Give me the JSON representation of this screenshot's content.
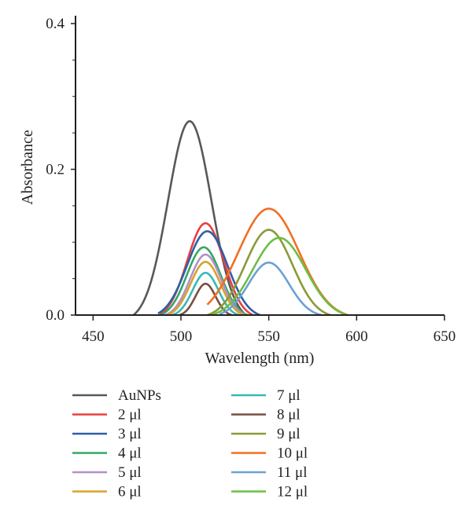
{
  "chart_data": {
    "type": "line",
    "xlabel": "Wavelength (nm)",
    "ylabel": "Absorbance",
    "xlim": [
      440,
      650
    ],
    "ylim": [
      0,
      0.4
    ],
    "x_ticks": [
      450,
      500,
      550,
      600,
      650
    ],
    "y_ticks": [
      0.0,
      0.2,
      0.4
    ],
    "y_tick_labels": [
      "0.0",
      "0.2",
      "0.4"
    ],
    "grid": false,
    "legend_position": "bottom",
    "series": [
      {
        "name": "AuNPs",
        "color": "#58585a",
        "peak_x": 505,
        "peak_y": 0.266,
        "x_range": [
          473,
          537
        ]
      },
      {
        "name": "2 μl",
        "color": "#e8403f",
        "peak_x": 514,
        "peak_y": 0.126,
        "x_range": [
          488,
          541
        ]
      },
      {
        "name": "3 μl",
        "color": "#2f5fa8",
        "peak_x": 515,
        "peak_y": 0.115,
        "x_range": [
          487,
          545
        ]
      },
      {
        "name": "4 μl",
        "color": "#33a862",
        "peak_x": 513,
        "peak_y": 0.093,
        "x_range": [
          489,
          538
        ]
      },
      {
        "name": "5 μl",
        "color": "#b291c8",
        "peak_x": 514,
        "peak_y": 0.083,
        "x_range": [
          491,
          537
        ]
      },
      {
        "name": "6 μl",
        "color": "#d7a42b",
        "peak_x": 514,
        "peak_y": 0.073,
        "x_range": [
          493,
          536
        ]
      },
      {
        "name": "7 μl",
        "color": "#37b8b8",
        "peak_x": 514,
        "peak_y": 0.058,
        "x_range": [
          495,
          533
        ]
      },
      {
        "name": "8 μl",
        "color": "#7a4e42",
        "peak_x": 514,
        "peak_y": 0.043,
        "x_range": [
          499,
          529
        ]
      },
      {
        "name": "9 μl",
        "color": "#8a9a38",
        "peak_x": 550,
        "peak_y": 0.117,
        "x_range": [
          515,
          585
        ]
      },
      {
        "name": "10 μl",
        "color": "#f26f22",
        "peak_x": 550,
        "peak_y": 0.146,
        "x_range": [
          515,
          595
        ]
      },
      {
        "name": "11 μl",
        "color": "#6aa2d4",
        "peak_x": 550,
        "peak_y": 0.072,
        "x_range": [
          522,
          580
        ]
      },
      {
        "name": "12 μl",
        "color": "#6cbe45",
        "peak_x": 556,
        "peak_y": 0.106,
        "x_range": [
          518,
          595
        ]
      }
    ]
  }
}
